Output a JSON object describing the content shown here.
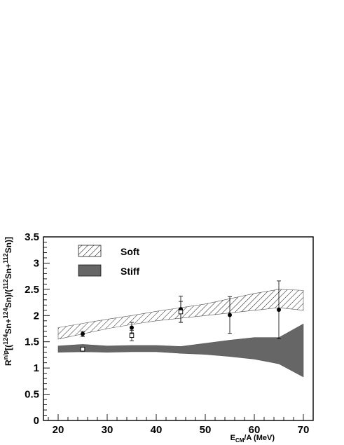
{
  "chart_data": {
    "type": "scatter",
    "title": "",
    "xlim": [
      17,
      72
    ],
    "ylim": [
      0,
      3.5
    ],
    "x_ticks": [
      20,
      30,
      40,
      50,
      60,
      70
    ],
    "x_tick_labels": [
      "20",
      "30",
      "40",
      "50",
      "60",
      "70"
    ],
    "y_ticks": [
      0,
      0.5,
      1,
      1.5,
      2,
      2.5,
      3,
      3.5
    ],
    "y_tick_labels": [
      "0",
      "0.5",
      "1",
      "1.5",
      "2",
      "2.5",
      "3",
      "3.5"
    ],
    "xlabel": {
      "main": "E",
      "sub": "CM",
      "rest": "/A (MeV)"
    },
    "ylabel": {
      "parts": [
        {
          "t": "R",
          "sup": false
        },
        {
          "t": "n/p",
          "sup": true
        },
        {
          "t": "[(",
          "sup": false
        },
        {
          "t": "124",
          "sup": true
        },
        {
          "t": "Sn+",
          "sup": false
        },
        {
          "t": "124",
          "sup": true
        },
        {
          "t": "Sn)/(",
          "sup": false
        },
        {
          "t": "112",
          "sup": true
        },
        {
          "t": "Sn+",
          "sup": false
        },
        {
          "t": "112",
          "sup": true
        },
        {
          "t": "Sn)]",
          "sup": false
        }
      ]
    },
    "grid": false,
    "legend": {
      "placement": "top-left",
      "entries": [
        {
          "label": "Soft",
          "style": "hatched"
        },
        {
          "label": "Stiff",
          "style": "filled"
        }
      ]
    },
    "bands": [
      {
        "name": "Soft",
        "style": "hatched",
        "color": "#000000",
        "x": [
          20,
          25,
          30,
          35,
          40,
          45,
          50,
          55,
          60,
          65,
          70
        ],
        "lower": [
          1.55,
          1.65,
          1.75,
          1.83,
          1.9,
          1.95,
          2.0,
          2.05,
          2.1,
          2.15,
          2.1
        ],
        "upper": [
          1.77,
          1.85,
          1.93,
          2.0,
          2.08,
          2.15,
          2.22,
          2.32,
          2.42,
          2.5,
          2.48
        ]
      },
      {
        "name": "Stiff",
        "style": "filled",
        "color": "#666666",
        "x": [
          20,
          25,
          30,
          35,
          40,
          45,
          50,
          55,
          60,
          65,
          70
        ],
        "lower": [
          1.3,
          1.31,
          1.3,
          1.31,
          1.31,
          1.28,
          1.26,
          1.22,
          1.17,
          1.08,
          0.83
        ],
        "upper": [
          1.42,
          1.45,
          1.42,
          1.43,
          1.43,
          1.41,
          1.47,
          1.53,
          1.58,
          1.58,
          1.84
        ]
      }
    ],
    "series": [
      {
        "marker": "filled-circle",
        "color": "#000000",
        "x": [
          25,
          35,
          45,
          55,
          65
        ],
        "y": [
          1.65,
          1.77,
          2.12,
          2.01,
          2.11
        ],
        "err": [
          0.05,
          0.1,
          0.25,
          0.35,
          0.55
        ]
      },
      {
        "marker": "open-square",
        "color": "#000000",
        "x": [
          25,
          35,
          45
        ],
        "y": [
          1.36,
          1.62,
          2.07
        ],
        "err": [
          0.0,
          0.1,
          0.2
        ]
      }
    ]
  }
}
